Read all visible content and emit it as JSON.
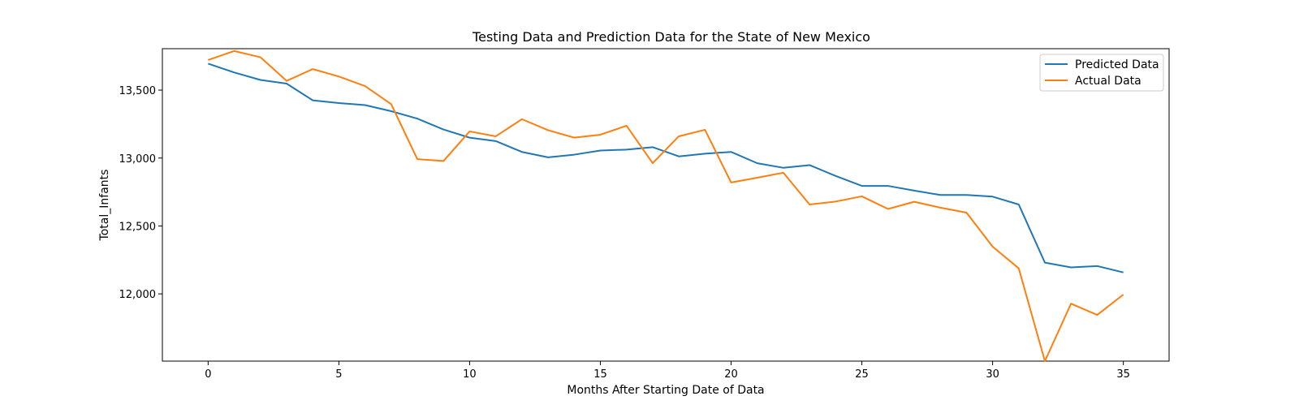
{
  "chart_data": {
    "type": "line",
    "title": "Testing Data and Prediction Data for the State of New Mexico",
    "xlabel": "Months After Starting Date of Data",
    "ylabel": "Total_Infants",
    "xlim": [
      -1.75,
      36.75
    ],
    "ylim": [
      11505,
      13805
    ],
    "x_ticks": [
      0,
      5,
      10,
      15,
      20,
      25,
      30,
      35
    ],
    "x_tick_labels": [
      "0",
      "5",
      "10",
      "15",
      "20",
      "25",
      "30",
      "35"
    ],
    "y_ticks": [
      12000,
      12500,
      13000,
      13500
    ],
    "y_tick_labels": [
      "12,000",
      "12,500",
      "13,000",
      "13,500"
    ],
    "grid": false,
    "legend_position": "top-right",
    "x": [
      0,
      1,
      2,
      3,
      4,
      5,
      6,
      7,
      8,
      9,
      10,
      11,
      12,
      13,
      14,
      15,
      16,
      17,
      18,
      19,
      20,
      21,
      22,
      23,
      24,
      25,
      26,
      27,
      28,
      29,
      30,
      31,
      32,
      33,
      34,
      35
    ],
    "series": [
      {
        "name": "Predicted Data",
        "color": "#1f77b4",
        "values": [
          13695,
          13630,
          13575,
          13548,
          13425,
          13405,
          13390,
          13345,
          13290,
          13210,
          13150,
          13125,
          13045,
          13005,
          13025,
          13055,
          13062,
          13080,
          13012,
          13032,
          13045,
          12962,
          12928,
          12948,
          12868,
          12795,
          12795,
          12760,
          12728,
          12728,
          12716,
          12658,
          12230,
          12195,
          12205,
          12158
        ]
      },
      {
        "name": "Actual Data",
        "color": "#ff7f0e",
        "values": [
          13722,
          13788,
          13742,
          13568,
          13655,
          13600,
          13530,
          13397,
          12992,
          12978,
          13196,
          13160,
          13286,
          13205,
          13150,
          13172,
          13238,
          12962,
          13160,
          13208,
          12820,
          12855,
          12892,
          12658,
          12680,
          12718,
          12625,
          12678,
          12635,
          12598,
          12348,
          12188,
          11505,
          11928,
          11845,
          11995
        ]
      }
    ]
  }
}
